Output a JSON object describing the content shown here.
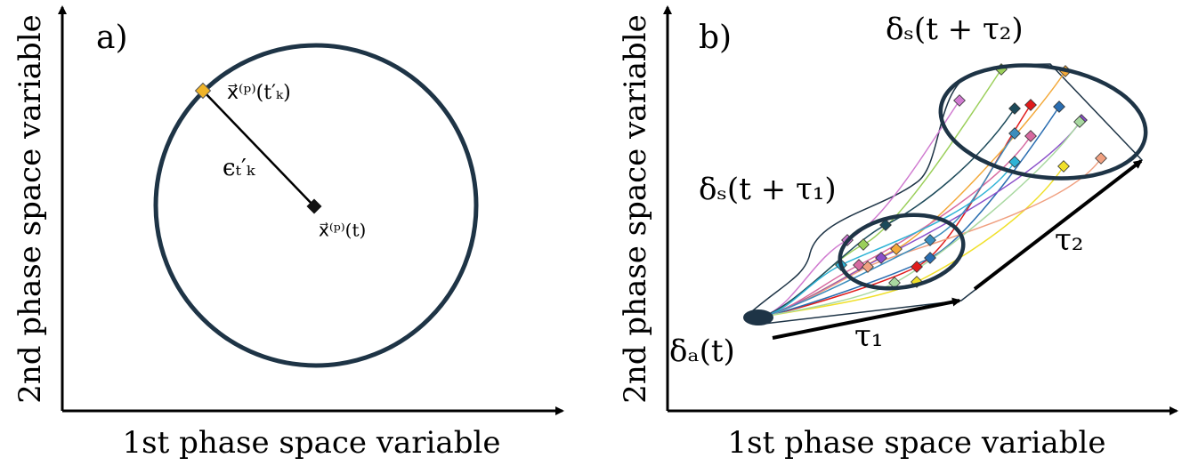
{
  "panel_a": {
    "label": "a)",
    "y_axis_label": "2nd phase space variable",
    "x_axis_label": "1st phase space variable",
    "point_edge_label": "x⃗⁽ᵖ⁾(t′ₖ)",
    "radius_label": "ϵₜ′ₖ",
    "point_center_label": "x⃗⁽ᵖ⁾(t)"
  },
  "panel_b": {
    "label": "b)",
    "y_axis_label": "2nd phase space variable",
    "x_axis_label": "1st phase space variable",
    "set_late_label": "δₛ(t + τ₂)",
    "set_mid_label": "δₛ(t + τ₁)",
    "set_start_label": "δₐ(t)",
    "tau1_label": "τ₁",
    "tau2_label": "τ₂"
  }
}
